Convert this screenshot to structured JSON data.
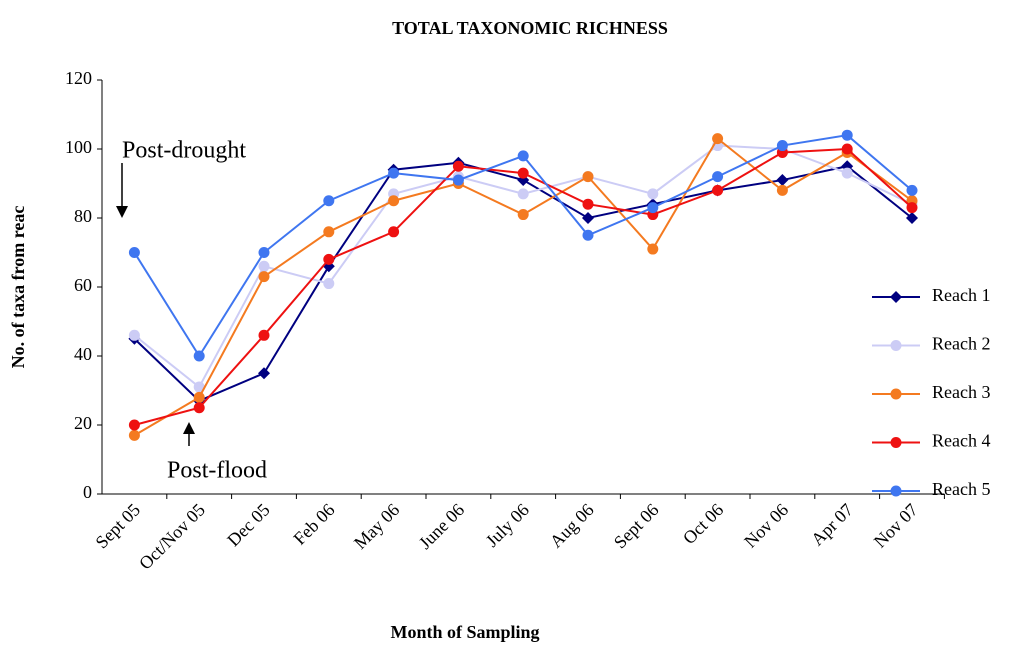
{
  "chart_data": {
    "type": "line",
    "title": "TOTAL TAXONOMIC RICHNESS",
    "x_label": "Month of Sampling",
    "y_label": "No. of taxa from reac",
    "categories": [
      "Sept 05",
      "Oct/Nov 05",
      "Dec 05",
      "Feb 06",
      "May 06",
      "June 06",
      "July 06",
      "Aug 06",
      "Sept 06",
      "Oct 06",
      "Nov 06",
      "Apr 07",
      "Nov 07"
    ],
    "series": [
      {
        "name": "Reach 1",
        "color": "#000080",
        "marker": "diamond",
        "values": [
          45,
          27,
          35,
          66,
          94,
          96,
          91,
          80,
          84,
          88,
          91,
          95,
          80
        ]
      },
      {
        "name": "Reach 2",
        "color": "#ccccf5",
        "marker": "circle",
        "values": [
          46,
          31,
          66,
          61,
          87,
          92,
          87,
          92,
          87,
          101,
          100,
          93,
          84
        ]
      },
      {
        "name": "Reach 3",
        "color": "#f47a20",
        "marker": "circle",
        "values": [
          17,
          28,
          63,
          76,
          85,
          90,
          81,
          92,
          71,
          103,
          88,
          99,
          85
        ]
      },
      {
        "name": "Reach 4",
        "color": "#ee1111",
        "marker": "circle",
        "values": [
          20,
          25,
          46,
          68,
          76,
          95,
          93,
          84,
          81,
          88,
          99,
          100,
          83
        ]
      },
      {
        "name": "Reach 5",
        "color": "#3f76f0",
        "marker": "circle",
        "values": [
          70,
          40,
          70,
          85,
          93,
          91,
          98,
          75,
          83,
          92,
          101,
          104,
          88
        ]
      }
    ],
    "ylim": [
      0,
      120
    ],
    "yticks": [
      0,
      20,
      40,
      60,
      80,
      100,
      120
    ],
    "grid": false,
    "legend": "right",
    "annotations": [
      {
        "text": "Post-drought"
      },
      {
        "text": "Post-flood"
      }
    ]
  }
}
